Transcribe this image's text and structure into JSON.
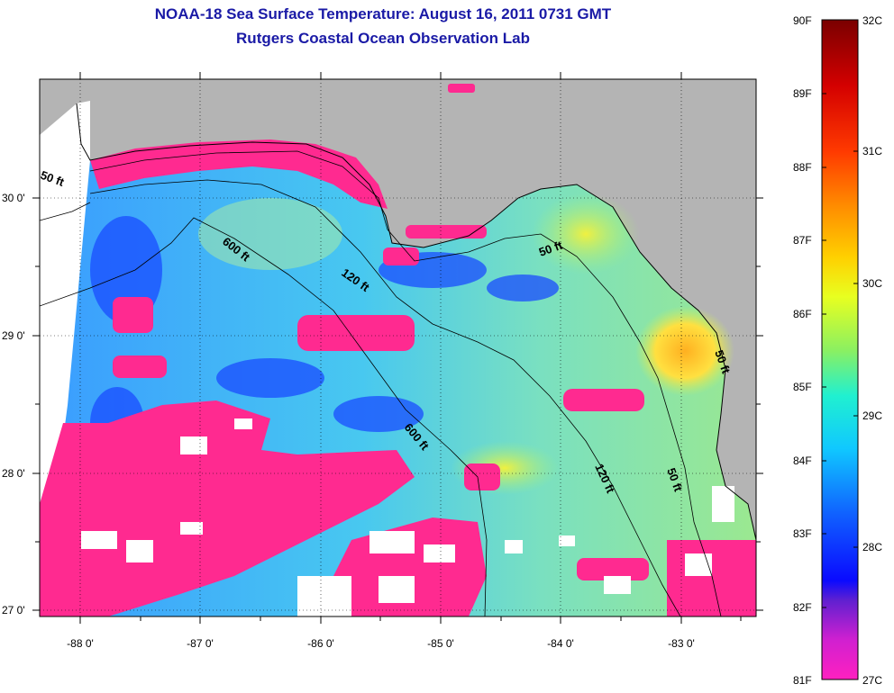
{
  "title": {
    "line1": "NOAA-18 Sea Surface Temperature:  August 16, 2011 0731 GMT",
    "line2": "Rutgers Coastal Ocean Observation Lab"
  },
  "map": {
    "lon_ticks": [
      "-88 0'",
      "-87 0'",
      "-86 0'",
      "-85 0'",
      "-84 0'",
      "-83 0'"
    ],
    "lat_ticks": [
      "30 0'",
      "29 0'",
      "28 0'",
      "27 0'"
    ],
    "contour_labels": [
      "50 ft",
      "600 ft",
      "120 ft",
      "50 ft",
      "600 ft",
      "120 ft",
      "50 ft",
      "50 ft"
    ],
    "colors": {
      "land": "#b4b4b4",
      "no_data": "#ffffff",
      "contour": "#000000",
      "warm_water": "#ff2a90"
    }
  },
  "legend": {
    "fahrenheit_labels": [
      "90F",
      "89F",
      "88F",
      "87F",
      "86F",
      "85F",
      "84F",
      "83F",
      "82F",
      "81F"
    ],
    "celsius_labels": [
      "32C",
      "31C",
      "30C",
      "29C",
      "28C",
      "27C"
    ],
    "gradient_colors": [
      "#7a0000",
      "#d40000",
      "#ff3a00",
      "#ff8a00",
      "#ffd000",
      "#e8ff20",
      "#8cf060",
      "#20f0d0",
      "#10c8ff",
      "#1060ff",
      "#0a0aff",
      "#6020d0",
      "#d020d0",
      "#ff20c0"
    ]
  }
}
